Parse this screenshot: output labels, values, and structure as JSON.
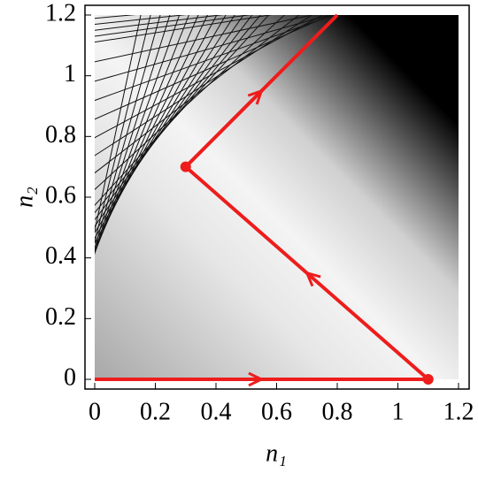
{
  "chart_data": {
    "type": "line",
    "x_label": "n₁",
    "y_label": "n₂",
    "xlim": [
      0,
      1.2
    ],
    "ylim": [
      0,
      1.2
    ],
    "xticks": [
      0,
      0.2,
      0.4,
      0.6,
      0.8,
      1,
      1.2
    ],
    "yticks": [
      0,
      0.2,
      0.4,
      0.6,
      0.8,
      1,
      1.2
    ],
    "series": [
      {
        "color": "#ee1c1c",
        "x": [
          0,
          1.1,
          0.3,
          0.8
        ],
        "values": [
          0,
          0,
          0.7,
          1.2
        ]
      }
    ]
  }
}
